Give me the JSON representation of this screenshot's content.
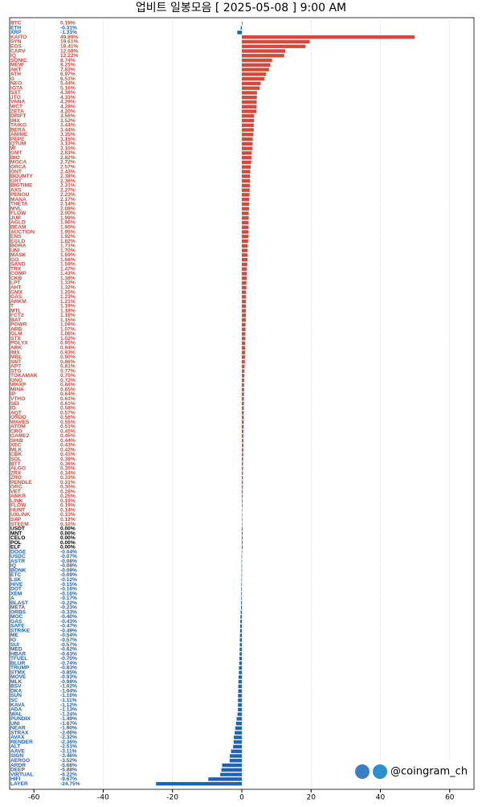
{
  "chart_data": {
    "type": "bar",
    "orientation": "horizontal",
    "title": "업비트 일봉모음 [ 2025-05-08 ]  9:00 AM",
    "watermark": "@coingram_ch",
    "positive_color": "#d24a3c",
    "negative_color": "#1f63b5",
    "zero_color": "#000000",
    "xlim": [
      -67,
      67
    ],
    "xticks": [
      -60,
      -40,
      -20,
      0,
      20,
      40,
      60
    ],
    "grid": true,
    "categories": [
      "BTC",
      "ETH",
      "XRP",
      "KAITO",
      "SYN",
      "EOS",
      "CARV",
      "IQ",
      "SONIC",
      "MEW",
      "AKT",
      "ATH",
      "G",
      "NEO",
      "IOTA",
      "SXT",
      "JTO",
      "VANA",
      "WCT",
      "ZETA",
      "DRIFT",
      "IMX",
      "TAIKO",
      "BERA",
      "ANIME",
      "PEPE",
      "QTUM",
      "W",
      "GMT",
      "BIO",
      "MOCA",
      "ORCA",
      "ONT",
      "BOUNTY",
      "GRT",
      "BIGTIME",
      "AXS",
      "PENGU",
      "MANA",
      "THETA",
      "MVL",
      "FLOW",
      "JUP",
      "AGLD",
      "BEAM",
      "AUCTION",
      "ENS",
      "EGLD",
      "BORA",
      "UNI",
      "MASK",
      "GO",
      "SAND",
      "TRX",
      "COMP",
      "CKB",
      "LPT",
      "AHT",
      "GMX",
      "GAS",
      "ARKM",
      "T",
      "MTL",
      "FCT2",
      "BAT",
      "POWR",
      "ARB",
      "GLM",
      "STX",
      "POLYX",
      "ARK",
      "IMX",
      "MBL",
      "SNT",
      "APT",
      "STG",
      "TOKAMAK",
      "ONG",
      "WAXP",
      "MINA",
      "IP",
      "VTHO",
      "SEI",
      "ID",
      "AQT",
      "ONDO",
      "WAVES",
      "ATOM",
      "CRO",
      "GAME2",
      "SHIB",
      "XEC",
      "MLK",
      "CBK",
      "SOL",
      "BTT",
      "ALGO",
      "ZRX",
      "ZRO",
      "PENDLE",
      "ORC",
      "VET",
      "ANKR",
      "LINK",
      "FLOW",
      "HUNT",
      "UXLINK",
      "SXP",
      "STEEM",
      "USDT",
      "MNT",
      "CELO",
      "POL",
      "ELF",
      "DOGE",
      "USDC",
      "ASTR",
      "IQ",
      "BONK",
      "ETC",
      "LSK",
      "HIVE",
      "DOT",
      "XEM",
      "A",
      "BLAST",
      "META",
      "ORBS",
      "MOC",
      "GAS",
      "SAFE",
      "STRIKE",
      "ME",
      "IO",
      "SUI",
      "MED",
      "HBAR",
      "TFUEL",
      "BLUR",
      "TRUMP",
      "STMX",
      "MOVE",
      "MLK",
      "BSV",
      "DKA",
      "SUN",
      "SC",
      "KAVA",
      "ADA",
      "WAL",
      "PUNDIX",
      "UNI",
      "NEAR",
      "STRAX",
      "AVAX",
      "RENDER",
      "ALT",
      "AAVE",
      "SIGN",
      "AERGO",
      "ARDR",
      "DEEP",
      "VIRTUAL",
      "HIFI",
      "LAYER"
    ],
    "values": [
      0.19,
      -0.31,
      -1.31,
      49.89,
      19.61,
      18.41,
      12.58,
      12.22,
      8.74,
      8.25,
      7.83,
      6.97,
      6.51,
      5.44,
      5.16,
      4.38,
      4.33,
      4.29,
      4.28,
      4.2,
      3.56,
      3.52,
      3.44,
      3.44,
      3.35,
      3.15,
      3.13,
      3.1,
      2.83,
      2.82,
      2.72,
      2.57,
      2.43,
      2.38,
      2.36,
      2.31,
      2.27,
      2.23,
      2.17,
      2.14,
      2.08,
      2.0,
      1.99,
      1.96,
      1.95,
      1.95,
      1.92,
      1.82,
      1.71,
      1.7,
      1.69,
      1.66,
      1.59,
      1.47,
      1.43,
      1.38,
      1.33,
      1.32,
      1.25,
      1.23,
      1.21,
      1.19,
      1.18,
      1.18,
      1.15,
      1.09,
      1.07,
      1.06,
      1.02,
      0.95,
      0.94,
      0.93,
      0.9,
      0.86,
      0.81,
      0.77,
      0.75,
      0.72,
      0.66,
      0.65,
      0.64,
      0.61,
      0.61,
      0.58,
      0.57,
      0.56,
      0.55,
      0.51,
      0.45,
      0.45,
      0.44,
      0.43,
      0.42,
      0.41,
      0.38,
      0.36,
      0.35,
      0.34,
      0.33,
      0.31,
      0.3,
      0.28,
      0.25,
      0.19,
      0.19,
      0.14,
      0.13,
      0.12,
      0.12,
      0,
      0,
      0,
      0,
      0,
      -0.04,
      -0.07,
      -0.08,
      -0.08,
      -0.09,
      -0.09,
      -0.12,
      -0.15,
      -0.16,
      -0.16,
      -0.17,
      -0.22,
      -0.23,
      -0.33,
      -0.4,
      -0.43,
      -0.47,
      -0.49,
      -0.54,
      -0.57,
      -0.57,
      -0.62,
      -0.63,
      -0.7,
      -0.74,
      -0.83,
      -0.85,
      -0.93,
      -0.98,
      -1.02,
      -1.04,
      -1.1,
      -1.11,
      -1.12,
      -1.13,
      -1.24,
      -1.49,
      -1.67,
      -1.9,
      -2.06,
      -2.32,
      -2.36,
      -2.51,
      -3.11,
      -3.46,
      -3.52,
      -5.68,
      -5.88,
      -6.22,
      -9.67,
      -24.75
    ],
    "value_labels": [
      "0.19%",
      "-0.31%",
      "-1.31%",
      "49.89%",
      "19.61%",
      "18.41%",
      "12.58%",
      "12.22%",
      "8.74%",
      "8.25%",
      "7.83%",
      "6.97%",
      "6.51%",
      "5.44%",
      "5.16%",
      "4.38%",
      "4.33%",
      "4.29%",
      "4.28%",
      "4.20%",
      "3.56%",
      "3.52%",
      "3.44%",
      "3.44%",
      "3.35%",
      "3.15%",
      "3.13%",
      "3.10%",
      "2.83%",
      "2.82%",
      "2.72%",
      "2.57%",
      "2.43%",
      "2.38%",
      "2.36%",
      "2.31%",
      "2.27%",
      "2.23%",
      "2.17%",
      "2.14%",
      "2.08%",
      "2.00%",
      "1.99%",
      "1.96%",
      "1.95%",
      "1.95%",
      "1.92%",
      "1.82%",
      "1.71%",
      "1.70%",
      "1.69%",
      "1.66%",
      "1.59%",
      "1.47%",
      "1.43%",
      "1.38%",
      "1.33%",
      "1.32%",
      "1.25%",
      "1.23%",
      "1.21%",
      "1.19%",
      "1.18%",
      "1.18%",
      "1.15%",
      "1.09%",
      "1.07%",
      "1.06%",
      "1.02%",
      "0.95%",
      "0.94%",
      "0.93%",
      "0.90%",
      "0.86%",
      "0.81%",
      "0.77%",
      "0.75%",
      "0.72%",
      "0.66%",
      "0.65%",
      "0.64%",
      "0.61%",
      "0.61%",
      "0.58%",
      "0.57%",
      "0.56%",
      "0.55%",
      "0.51%",
      "0.45%",
      "0.45%",
      "0.44%",
      "0.43%",
      "0.42%",
      "0.41%",
      "0.38%",
      "0.36%",
      "0.35%",
      "0.34%",
      "0.33%",
      "0.31%",
      "0.30%",
      "0.28%",
      "0.25%",
      "0.19%",
      "0.19%",
      "0.14%",
      "0.13%",
      "0.12%",
      "0.12%",
      "0.00%",
      "0.00%",
      "0.00%",
      "0.00%",
      "0.00%",
      "-0.04%",
      "-0.07%",
      "-0.08%",
      "-0.08%",
      "-0.09%",
      "-0.09%",
      "-0.12%",
      "-0.15%",
      "-0.16%",
      "-0.16%",
      "-0.17%",
      "-0.22%",
      "-0.23%",
      "-0.33%",
      "-0.40%",
      "-0.43%",
      "-0.47%",
      "-0.49%",
      "-0.54%",
      "-0.57%",
      "-0.57%",
      "-0.62%",
      "-0.63%",
      "-0.70%",
      "-0.74%",
      "-0.83%",
      "-0.85%",
      "-0.93%",
      "-0.98%",
      "-1.02%",
      "-1.04%",
      "-1.10%",
      "-1.11%",
      "-1.12%",
      "-1.13%",
      "-1.24%",
      "-1.49%",
      "-1.67%",
      "-1.90%",
      "-2.06%",
      "-2.32%",
      "-2.36%",
      "-2.51%",
      "-3.11%",
      "-3.46%",
      "-3.52%",
      "-5.68%",
      "-5.88%",
      "-6.22%",
      "-9.67%",
      "-24.75%"
    ]
  }
}
